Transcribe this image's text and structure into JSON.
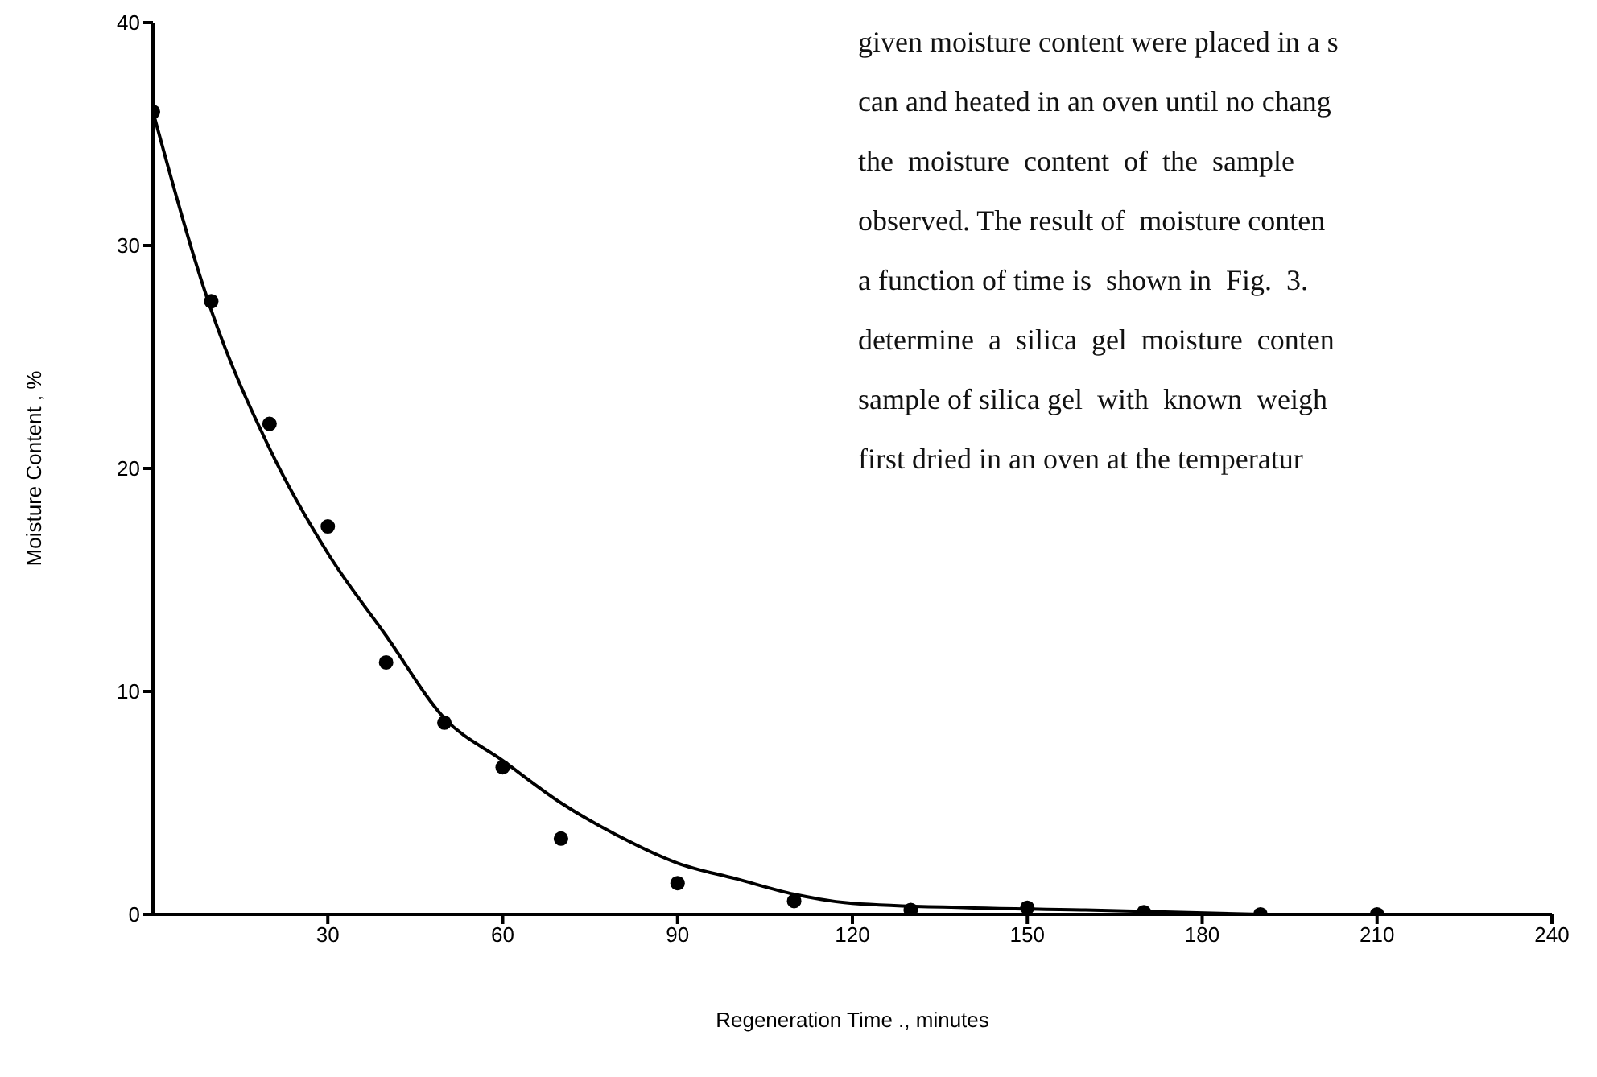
{
  "chart_data": {
    "type": "scatter",
    "xlabel": "Regeneration Time ., minutes",
    "ylabel": "Moisture Content , %",
    "annotations": [
      "given moisture content were placed in a s",
      "can and heated in an oven until no chang",
      "the  moisture  content  of  the  sample",
      "observed. The result of  moisture conten",
      "a function of time is  shown in  Fig.  3.",
      "determine  a  silica  gel  moisture  conten",
      "sample of silica gel  with  known  weigh",
      "first dried in an oven at the temperatur"
    ],
    "xlim": [
      0,
      240
    ],
    "xticks": [
      30,
      60,
      90,
      120,
      150,
      180,
      210,
      240
    ],
    "ylim": [
      0,
      40
    ],
    "yticks": [
      0,
      10,
      20,
      30,
      40
    ],
    "grid": false,
    "legend": false,
    "series": [
      {
        "color": "#000000",
        "marker": "circle",
        "x": [
          0,
          10,
          20,
          30,
          40,
          50,
          60,
          70,
          90,
          110,
          130,
          150,
          170,
          190,
          210
        ],
        "values": [
          36,
          27.5,
          22,
          17.4,
          11.3,
          8.6,
          6.6,
          3.4,
          1.4,
          0.6,
          0.2,
          0.3,
          0.1,
          0,
          0
        ]
      },
      {
        "type": "line",
        "color": "#000000",
        "marker": "none",
        "line_style": "solid",
        "x": [
          0,
          10,
          20,
          30,
          40,
          50,
          60,
          70,
          80,
          90,
          100,
          110,
          120,
          140,
          160,
          190
        ],
        "values": [
          36,
          27.1,
          20.9,
          16.2,
          12.5,
          8.8,
          6.9,
          5,
          3.5,
          2.3,
          1.6,
          0.9,
          0.5,
          0.3,
          0.2,
          0
        ]
      }
    ]
  }
}
